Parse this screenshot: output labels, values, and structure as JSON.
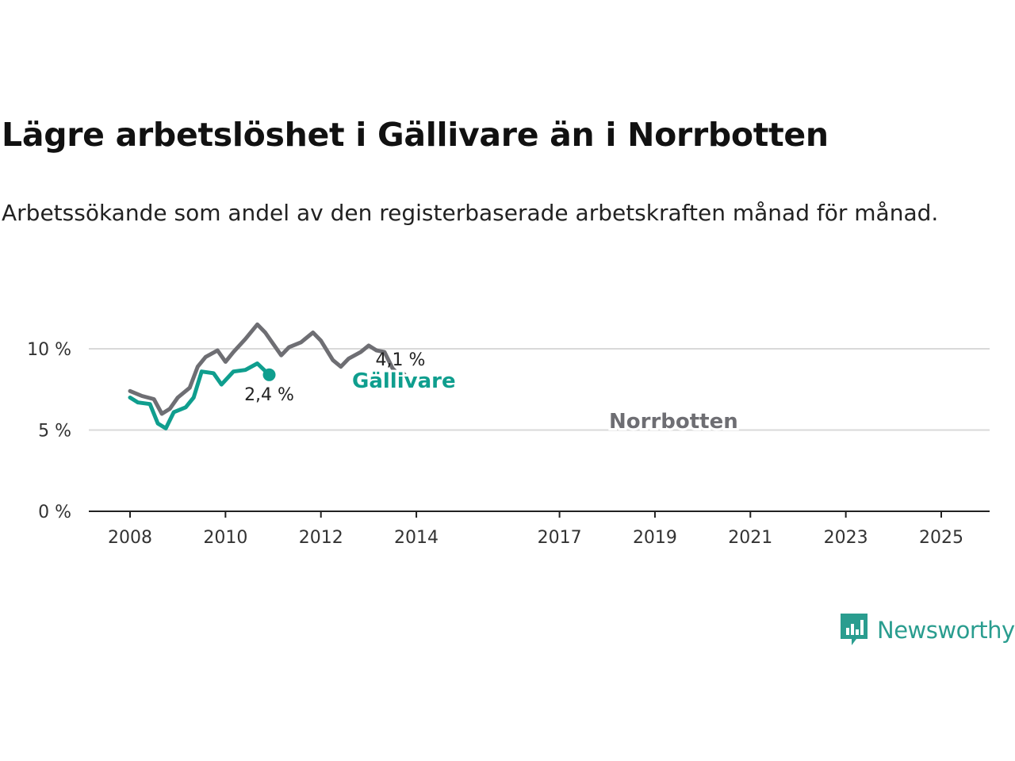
{
  "title": "Lägre arbetslöshet i Gällivare än i Norrbotten",
  "subtitle": "Arbetssökande som andel av den registerbaserade arbetskraften månad för månad.",
  "brand": {
    "name": "Newsworthy",
    "color": "#2a9d8f",
    "icon": "newsworthy-logo-icon"
  },
  "chart_data": {
    "type": "line",
    "x_ticks": [
      "2008",
      "2010",
      "2012",
      "2014",
      "2017",
      "2019",
      "2021",
      "2023",
      "2025"
    ],
    "y_ticks": [
      "0 %",
      "5 %",
      "10 %"
    ],
    "ylim": [
      0,
      10
    ],
    "xlim": [
      "2008-01",
      "2025-12"
    ],
    "grid": "horizontal",
    "series": [
      {
        "name": "Norrbotten",
        "color": "#6e6e73",
        "end_label": "4,1 %",
        "points": [
          [
            "2008-01",
            7.4
          ],
          [
            "2008-04",
            7.1
          ],
          [
            "2008-07",
            6.9
          ],
          [
            "2008-09",
            6.0
          ],
          [
            "2008-11",
            6.3
          ],
          [
            "2009-01",
            7.0
          ],
          [
            "2009-04",
            7.6
          ],
          [
            "2009-06",
            8.9
          ],
          [
            "2009-08",
            9.5
          ],
          [
            "2009-11",
            9.9
          ],
          [
            "2010-01",
            9.2
          ],
          [
            "2010-03",
            9.8
          ],
          [
            "2010-06",
            10.6
          ],
          [
            "2010-09",
            11.5
          ],
          [
            "2010-11",
            11.0
          ],
          [
            "2011-01",
            10.3
          ],
          [
            "2011-03",
            9.6
          ],
          [
            "2011-05",
            10.1
          ],
          [
            "2011-08",
            10.4
          ],
          [
            "2011-11",
            11.0
          ],
          [
            "2012-01",
            10.5
          ],
          [
            "2012-04",
            9.3
          ],
          [
            "2012-06",
            8.9
          ],
          [
            "2012-08",
            9.4
          ],
          [
            "2012-11",
            9.8
          ],
          [
            "2013-01",
            10.2
          ],
          [
            "2013-03",
            9.9
          ],
          [
            "2013-05",
            9.8
          ],
          [
            "2013-07",
            8.8
          ],
          [
            "2013-09",
            8.3
          ]
        ]
      },
      {
        "name": "Gällivare",
        "color": "#0f9e8e",
        "end_label": "2,4 %",
        "points": [
          [
            "2008-01",
            7.0
          ],
          [
            "2008-03",
            6.7
          ],
          [
            "2008-06",
            6.6
          ],
          [
            "2008-08",
            5.4
          ],
          [
            "2008-10",
            5.1
          ],
          [
            "2008-12",
            6.1
          ],
          [
            "2009-03",
            6.4
          ],
          [
            "2009-05",
            7.0
          ],
          [
            "2009-07",
            8.6
          ],
          [
            "2009-10",
            8.5
          ],
          [
            "2009-12",
            7.8
          ],
          [
            "2010-03",
            8.6
          ],
          [
            "2010-06",
            8.7
          ],
          [
            "2010-09",
            9.1
          ],
          [
            "2010-12",
            8.4
          ]
        ]
      }
    ]
  }
}
